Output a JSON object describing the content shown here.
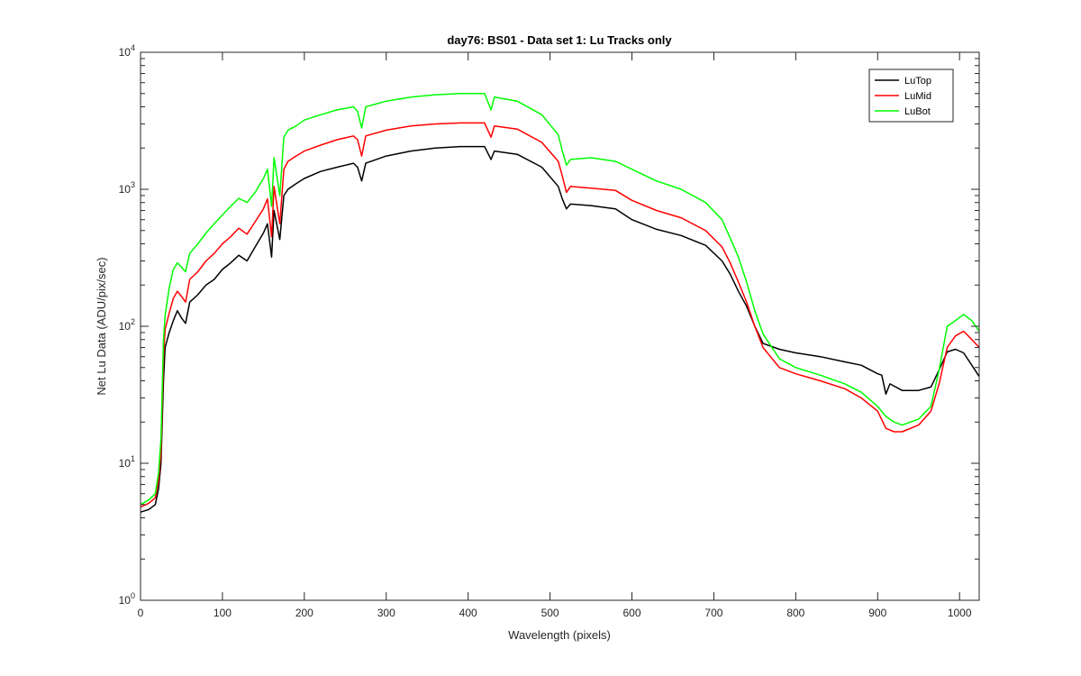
{
  "chart_data": {
    "type": "line",
    "title": "day76: BS01 - Data set 1: Lu Tracks only",
    "xlabel": "Wavelength (pixels)",
    "ylabel": "Net Lu Data (ADU/pix/sec)",
    "xlim": [
      0,
      1024
    ],
    "ylim": [
      1,
      10000
    ],
    "yscale": "log",
    "grid": false,
    "legend_position": "top-right",
    "xticks": [
      0,
      100,
      200,
      300,
      400,
      500,
      600,
      700,
      800,
      900,
      1000
    ],
    "xtick_labels": [
      "0",
      "100",
      "200",
      "300",
      "400",
      "500",
      "600",
      "700",
      "800",
      "900",
      "1000"
    ],
    "yticks": [
      1,
      10,
      100,
      1000,
      10000
    ],
    "ytick_labels": [
      {
        "base": "10",
        "exp": "0"
      },
      {
        "base": "10",
        "exp": "1"
      },
      {
        "base": "10",
        "exp": "2"
      },
      {
        "base": "10",
        "exp": "3"
      },
      {
        "base": "10",
        "exp": "4"
      }
    ],
    "series": [
      {
        "name": "LuTop",
        "color": "#000000",
        "points": [
          [
            0,
            4.4
          ],
          [
            10,
            4.6
          ],
          [
            18,
            5.0
          ],
          [
            22,
            6.5
          ],
          [
            25,
            10
          ],
          [
            28,
            40
          ],
          [
            30,
            70
          ],
          [
            35,
            90
          ],
          [
            40,
            110
          ],
          [
            45,
            130
          ],
          [
            50,
            115
          ],
          [
            55,
            105
          ],
          [
            60,
            150
          ],
          [
            70,
            170
          ],
          [
            80,
            200
          ],
          [
            90,
            220
          ],
          [
            100,
            260
          ],
          [
            110,
            290
          ],
          [
            120,
            330
          ],
          [
            130,
            300
          ],
          [
            140,
            380
          ],
          [
            150,
            480
          ],
          [
            155,
            560
          ],
          [
            160,
            320
          ],
          [
            163,
            700
          ],
          [
            170,
            430
          ],
          [
            175,
            900
          ],
          [
            180,
            1000
          ],
          [
            190,
            1100
          ],
          [
            200,
            1200
          ],
          [
            220,
            1350
          ],
          [
            240,
            1450
          ],
          [
            260,
            1550
          ],
          [
            265,
            1450
          ],
          [
            270,
            1150
          ],
          [
            275,
            1550
          ],
          [
            300,
            1750
          ],
          [
            330,
            1900
          ],
          [
            360,
            2000
          ],
          [
            390,
            2050
          ],
          [
            420,
            2050
          ],
          [
            428,
            1650
          ],
          [
            432,
            1900
          ],
          [
            460,
            1800
          ],
          [
            490,
            1450
          ],
          [
            510,
            1050
          ],
          [
            515,
            850
          ],
          [
            520,
            720
          ],
          [
            525,
            780
          ],
          [
            550,
            760
          ],
          [
            580,
            720
          ],
          [
            600,
            600
          ],
          [
            630,
            510
          ],
          [
            660,
            460
          ],
          [
            690,
            390
          ],
          [
            710,
            300
          ],
          [
            720,
            240
          ],
          [
            730,
            180
          ],
          [
            740,
            140
          ],
          [
            750,
            100
          ],
          [
            760,
            75
          ],
          [
            780,
            68
          ],
          [
            800,
            64
          ],
          [
            830,
            60
          ],
          [
            860,
            55
          ],
          [
            880,
            52
          ],
          [
            900,
            45
          ],
          [
            905,
            44
          ],
          [
            910,
            32
          ],
          [
            915,
            38
          ],
          [
            930,
            34
          ],
          [
            950,
            34
          ],
          [
            965,
            36
          ],
          [
            975,
            48
          ],
          [
            985,
            65
          ],
          [
            995,
            68
          ],
          [
            1005,
            64
          ],
          [
            1015,
            52
          ],
          [
            1024,
            43
          ]
        ]
      },
      {
        "name": "LuMid",
        "color": "#ff0000",
        "points": [
          [
            0,
            4.8
          ],
          [
            10,
            5.1
          ],
          [
            18,
            5.6
          ],
          [
            22,
            7.5
          ],
          [
            25,
            12
          ],
          [
            28,
            60
          ],
          [
            30,
            95
          ],
          [
            35,
            125
          ],
          [
            40,
            160
          ],
          [
            45,
            180
          ],
          [
            50,
            165
          ],
          [
            55,
            150
          ],
          [
            60,
            220
          ],
          [
            70,
            250
          ],
          [
            80,
            300
          ],
          [
            90,
            340
          ],
          [
            100,
            400
          ],
          [
            110,
            450
          ],
          [
            120,
            520
          ],
          [
            130,
            470
          ],
          [
            140,
            580
          ],
          [
            150,
            720
          ],
          [
            155,
            850
          ],
          [
            160,
            450
          ],
          [
            163,
            1050
          ],
          [
            170,
            560
          ],
          [
            175,
            1400
          ],
          [
            180,
            1600
          ],
          [
            190,
            1750
          ],
          [
            200,
            1900
          ],
          [
            220,
            2100
          ],
          [
            240,
            2300
          ],
          [
            260,
            2450
          ],
          [
            265,
            2300
          ],
          [
            270,
            1750
          ],
          [
            275,
            2450
          ],
          [
            300,
            2700
          ],
          [
            330,
            2900
          ],
          [
            360,
            3000
          ],
          [
            390,
            3050
          ],
          [
            420,
            3050
          ],
          [
            428,
            2400
          ],
          [
            432,
            2900
          ],
          [
            460,
            2750
          ],
          [
            490,
            2200
          ],
          [
            510,
            1600
          ],
          [
            515,
            1250
          ],
          [
            520,
            950
          ],
          [
            525,
            1050
          ],
          [
            550,
            1020
          ],
          [
            580,
            980
          ],
          [
            600,
            830
          ],
          [
            630,
            700
          ],
          [
            660,
            620
          ],
          [
            690,
            500
          ],
          [
            710,
            380
          ],
          [
            720,
            290
          ],
          [
            730,
            210
          ],
          [
            740,
            150
          ],
          [
            750,
            100
          ],
          [
            760,
            70
          ],
          [
            780,
            50
          ],
          [
            800,
            45
          ],
          [
            830,
            40
          ],
          [
            860,
            35
          ],
          [
            880,
            30
          ],
          [
            900,
            24
          ],
          [
            910,
            18
          ],
          [
            920,
            17
          ],
          [
            930,
            17
          ],
          [
            950,
            19
          ],
          [
            965,
            24
          ],
          [
            975,
            38
          ],
          [
            985,
            70
          ],
          [
            995,
            85
          ],
          [
            1005,
            92
          ],
          [
            1015,
            80
          ],
          [
            1024,
            70
          ]
        ]
      },
      {
        "name": "LuBot",
        "color": "#00ff00",
        "points": [
          [
            0,
            5.0
          ],
          [
            10,
            5.4
          ],
          [
            18,
            6.0
          ],
          [
            22,
            8.5
          ],
          [
            25,
            15
          ],
          [
            28,
            80
          ],
          [
            30,
            120
          ],
          [
            35,
            190
          ],
          [
            40,
            260
          ],
          [
            45,
            290
          ],
          [
            50,
            270
          ],
          [
            55,
            250
          ],
          [
            60,
            340
          ],
          [
            70,
            400
          ],
          [
            80,
            480
          ],
          [
            90,
            560
          ],
          [
            100,
            650
          ],
          [
            110,
            750
          ],
          [
            120,
            860
          ],
          [
            130,
            800
          ],
          [
            140,
            950
          ],
          [
            150,
            1200
          ],
          [
            155,
            1400
          ],
          [
            160,
            750
          ],
          [
            163,
            1700
          ],
          [
            170,
            900
          ],
          [
            175,
            2400
          ],
          [
            180,
            2700
          ],
          [
            190,
            2900
          ],
          [
            200,
            3200
          ],
          [
            220,
            3500
          ],
          [
            240,
            3800
          ],
          [
            260,
            4000
          ],
          [
            265,
            3700
          ],
          [
            270,
            2800
          ],
          [
            275,
            4000
          ],
          [
            300,
            4400
          ],
          [
            330,
            4700
          ],
          [
            360,
            4900
          ],
          [
            390,
            5000
          ],
          [
            420,
            5000
          ],
          [
            428,
            3800
          ],
          [
            432,
            4700
          ],
          [
            460,
            4400
          ],
          [
            490,
            3500
          ],
          [
            510,
            2500
          ],
          [
            515,
            1900
          ],
          [
            520,
            1500
          ],
          [
            525,
            1650
          ],
          [
            550,
            1700
          ],
          [
            580,
            1600
          ],
          [
            600,
            1400
          ],
          [
            630,
            1150
          ],
          [
            660,
            1000
          ],
          [
            690,
            800
          ],
          [
            710,
            600
          ],
          [
            720,
            440
          ],
          [
            730,
            320
          ],
          [
            740,
            210
          ],
          [
            750,
            130
          ],
          [
            760,
            88
          ],
          [
            780,
            58
          ],
          [
            800,
            50
          ],
          [
            830,
            44
          ],
          [
            860,
            38
          ],
          [
            880,
            33
          ],
          [
            900,
            26
          ],
          [
            910,
            22
          ],
          [
            920,
            20
          ],
          [
            930,
            19
          ],
          [
            950,
            21
          ],
          [
            965,
            26
          ],
          [
            975,
            48
          ],
          [
            985,
            100
          ],
          [
            995,
            110
          ],
          [
            1005,
            122
          ],
          [
            1015,
            110
          ],
          [
            1024,
            92
          ]
        ]
      }
    ]
  }
}
